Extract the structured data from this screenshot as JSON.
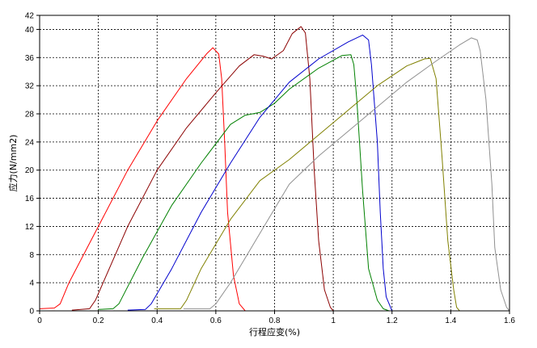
{
  "chart_data": {
    "type": "line",
    "title": "",
    "xlabel": "行程应变(%)",
    "ylabel": "应力(N/mm2)",
    "xlim": [
      0,
      1.6
    ],
    "ylim": [
      0,
      42
    ],
    "x_ticks": [
      "0",
      "0.2",
      "0.4",
      "0.6",
      "0.8",
      "1",
      "1.2",
      "1.4",
      "1.6"
    ],
    "y_ticks": [
      "0",
      "4",
      "8",
      "12",
      "16",
      "20",
      "24",
      "28",
      "32",
      "36",
      "40",
      "42"
    ],
    "grid": true,
    "legend": "none",
    "series": [
      {
        "color": "#ff0000",
        "points": [
          [
            0,
            0.3
          ],
          [
            0.05,
            0.4
          ],
          [
            0.07,
            1
          ],
          [
            0.1,
            4
          ],
          [
            0.2,
            12
          ],
          [
            0.3,
            20
          ],
          [
            0.4,
            27
          ],
          [
            0.5,
            33
          ],
          [
            0.57,
            36.6
          ],
          [
            0.59,
            37.4
          ],
          [
            0.61,
            36.5
          ],
          [
            0.62,
            33
          ],
          [
            0.63,
            24
          ],
          [
            0.64,
            14
          ],
          [
            0.66,
            5
          ],
          [
            0.68,
            1
          ],
          [
            0.7,
            0
          ]
        ]
      },
      {
        "color": "#8b0000",
        "points": [
          [
            0.11,
            0.1
          ],
          [
            0.17,
            0.3
          ],
          [
            0.19,
            1.5
          ],
          [
            0.3,
            12
          ],
          [
            0.4,
            20
          ],
          [
            0.5,
            26
          ],
          [
            0.6,
            31
          ],
          [
            0.68,
            34.8
          ],
          [
            0.73,
            36.4
          ],
          [
            0.76,
            36.2
          ],
          [
            0.79,
            35.8
          ],
          [
            0.83,
            37
          ],
          [
            0.86,
            39.4
          ],
          [
            0.89,
            40.4
          ],
          [
            0.905,
            39.5
          ],
          [
            0.92,
            33
          ],
          [
            0.935,
            20
          ],
          [
            0.95,
            10
          ],
          [
            0.97,
            3
          ],
          [
            0.99,
            0.5
          ],
          [
            1.0,
            0
          ]
        ]
      },
      {
        "color": "#008000",
        "points": [
          [
            0.2,
            0.2
          ],
          [
            0.25,
            0.3
          ],
          [
            0.27,
            1
          ],
          [
            0.35,
            7.5
          ],
          [
            0.45,
            15
          ],
          [
            0.55,
            21
          ],
          [
            0.65,
            26.5
          ],
          [
            0.7,
            27.8
          ],
          [
            0.75,
            28.2
          ],
          [
            0.8,
            29.5
          ],
          [
            0.85,
            31.5
          ],
          [
            0.95,
            34.5
          ],
          [
            1.03,
            36.3
          ],
          [
            1.06,
            36.4
          ],
          [
            1.07,
            35
          ],
          [
            1.08,
            30
          ],
          [
            1.1,
            17
          ],
          [
            1.12,
            6
          ],
          [
            1.15,
            1.5
          ],
          [
            1.17,
            0.3
          ],
          [
            1.19,
            0
          ]
        ]
      },
      {
        "color": "#0000cd",
        "points": [
          [
            0.3,
            0.1
          ],
          [
            0.36,
            0.2
          ],
          [
            0.38,
            1
          ],
          [
            0.45,
            6
          ],
          [
            0.55,
            14
          ],
          [
            0.65,
            21
          ],
          [
            0.75,
            27.5
          ],
          [
            0.85,
            32.5
          ],
          [
            0.95,
            35.8
          ],
          [
            1.05,
            38.2
          ],
          [
            1.1,
            39.2
          ],
          [
            1.12,
            38.5
          ],
          [
            1.13,
            35
          ],
          [
            1.15,
            24
          ],
          [
            1.16,
            14
          ],
          [
            1.17,
            6
          ],
          [
            1.18,
            2
          ],
          [
            1.2,
            0
          ]
        ]
      },
      {
        "color": "#808000",
        "points": [
          [
            0.39,
            0.3
          ],
          [
            0.48,
            0.3
          ],
          [
            0.5,
            1.5
          ],
          [
            0.55,
            6
          ],
          [
            0.65,
            13
          ],
          [
            0.75,
            18.5
          ],
          [
            0.85,
            21.5
          ],
          [
            0.95,
            25
          ],
          [
            1.05,
            28.5
          ],
          [
            1.15,
            32
          ],
          [
            1.25,
            34.8
          ],
          [
            1.31,
            35.8
          ],
          [
            1.33,
            35.9
          ],
          [
            1.35,
            33
          ],
          [
            1.37,
            22
          ],
          [
            1.39,
            10
          ],
          [
            1.41,
            3
          ],
          [
            1.42,
            0.5
          ],
          [
            1.43,
            0
          ]
        ]
      },
      {
        "color": "#909090",
        "points": [
          [
            0.49,
            0.3
          ],
          [
            0.58,
            0.3
          ],
          [
            0.6,
            1
          ],
          [
            0.65,
            4
          ],
          [
            0.75,
            11
          ],
          [
            0.85,
            18
          ],
          [
            0.95,
            22
          ],
          [
            1.05,
            25.5
          ],
          [
            1.15,
            29
          ],
          [
            1.25,
            32.5
          ],
          [
            1.35,
            35.5
          ],
          [
            1.43,
            37.8
          ],
          [
            1.47,
            38.8
          ],
          [
            1.49,
            38.5
          ],
          [
            1.5,
            37
          ],
          [
            1.52,
            30
          ],
          [
            1.54,
            18
          ],
          [
            1.55,
            9
          ],
          [
            1.57,
            3
          ],
          [
            1.59,
            0.5
          ],
          [
            1.6,
            0
          ]
        ]
      }
    ]
  }
}
